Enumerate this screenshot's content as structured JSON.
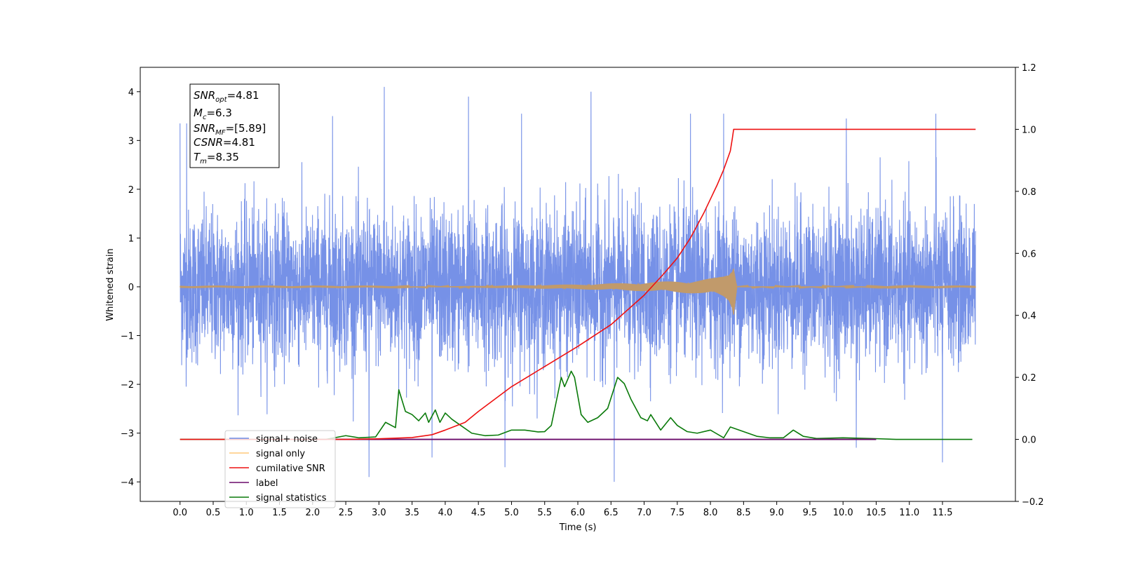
{
  "chart_data": {
    "type": "line",
    "xlabel": "Time (s)",
    "ylabel": "Whitened strain",
    "xlim": [
      -0.6,
      12.6
    ],
    "ylim_left": [
      -4.4,
      4.5
    ],
    "ylim_right": [
      -0.2,
      1.2
    ],
    "x_ticks": [
      0.0,
      0.5,
      1.0,
      1.5,
      2.0,
      2.5,
      3.0,
      3.5,
      4.0,
      4.5,
      5.0,
      5.5,
      6.0,
      6.5,
      7.0,
      7.5,
      8.0,
      8.5,
      9.0,
      9.5,
      10.0,
      10.5,
      11.0,
      11.5
    ],
    "x_tick_labels": [
      "0.0",
      "0.5",
      "1.0",
      "1.5",
      "2.0",
      "2.5",
      "3.0",
      "3.5",
      "4.0",
      "4.5",
      "5.0",
      "5.5",
      "6.0",
      "6.5",
      "7.0",
      "7.5",
      "8.0",
      "8.5",
      "9.0",
      "9.5",
      "10.0",
      "10.5",
      "11.0",
      "11.5"
    ],
    "y_ticks_left": [
      -4,
      -3,
      -2,
      -1,
      0,
      1,
      2,
      3,
      4
    ],
    "y_tick_labels_left": [
      "−4",
      "−3",
      "−2",
      "−1",
      "0",
      "1",
      "2",
      "3",
      "4"
    ],
    "y_ticks_right": [
      -0.2,
      0.0,
      0.2,
      0.4,
      0.6,
      0.8,
      1.0,
      1.2
    ],
    "y_tick_labels_right": [
      "−0.2",
      "0.0",
      "0.2",
      "0.4",
      "0.6",
      "0.8",
      "1.0",
      "1.2"
    ],
    "grid": false,
    "legend_placement": "lower-left",
    "legend": [
      {
        "label": "signal+ noise",
        "color": "#6f8be6"
      },
      {
        "label": "signal only",
        "color": "#ffc87a"
      },
      {
        "label": "cumilative SNR",
        "color": "#ee1111"
      },
      {
        "label": "label",
        "color": "#6a0a6a"
      },
      {
        "label": "signal statistics",
        "color": "#0a7a0a"
      }
    ],
    "annotation": [
      {
        "var": "SNR",
        "sub": "opt",
        "value": "=4.81"
      },
      {
        "var": "M",
        "sub": "c",
        "value": "=6.3"
      },
      {
        "var": "SNR",
        "sub": "MF",
        "value": "=[5.89]"
      },
      {
        "var": "CSNR",
        "sub": "",
        "value": "=4.81"
      },
      {
        "var": "T",
        "sub": "m",
        "value": "=8.35"
      }
    ],
    "series": [
      {
        "name": "signal+ noise",
        "axis": "left",
        "color": "#6f8be6",
        "description": "dense whitened noise, typical amplitude about ±2.3, spikes up to about 4.1 and down to about -4.0",
        "x_range": [
          0.0,
          12.0
        ],
        "spikes": [
          [
            0.0,
            3.35
          ],
          [
            0.1,
            3.35
          ],
          [
            3.08,
            4.1
          ],
          [
            4.35,
            3.9
          ],
          [
            6.2,
            4.0
          ],
          [
            2.85,
            -3.9
          ],
          [
            4.9,
            -3.7
          ],
          [
            6.55,
            -4.0
          ],
          [
            11.5,
            -3.6
          ],
          [
            10.2,
            -3.3
          ],
          [
            3.8,
            -3.5
          ],
          [
            11.4,
            3.55
          ],
          [
            8.2,
            3.55
          ],
          [
            7.7,
            3.55
          ],
          [
            5.15,
            3.55
          ],
          [
            2.3,
            3.5
          ],
          [
            10.05,
            3.45
          ]
        ]
      },
      {
        "name": "signal only",
        "axis": "left",
        "color": "#ffc87a",
        "x": [
          0.0,
          3.0,
          4.0,
          5.0,
          6.0,
          6.5,
          7.0,
          7.5,
          7.8,
          8.0,
          8.1,
          8.2,
          8.28,
          8.33,
          8.35,
          8.4,
          12.0
        ],
        "envelope": [
          0.005,
          0.005,
          0.01,
          0.03,
          0.05,
          0.07,
          0.09,
          0.12,
          0.14,
          0.17,
          0.19,
          0.23,
          0.3,
          0.45,
          0.6,
          0.01,
          0.005
        ]
      },
      {
        "name": "cumilative SNR",
        "axis": "right",
        "color": "#ee1111",
        "x": [
          0.0,
          2.5,
          3.0,
          3.5,
          3.8,
          4.0,
          4.3,
          4.5,
          5.0,
          5.5,
          6.0,
          6.5,
          7.0,
          7.3,
          7.5,
          7.7,
          7.9,
          8.1,
          8.2,
          8.3,
          8.33,
          8.35,
          12.0
        ],
        "y": [
          0.0,
          0.0,
          0.002,
          0.006,
          0.015,
          0.03,
          0.055,
          0.09,
          0.17,
          0.235,
          0.3,
          0.37,
          0.465,
          0.535,
          0.585,
          0.65,
          0.73,
          0.82,
          0.87,
          0.93,
          0.97,
          1.0,
          1.0
        ]
      },
      {
        "name": "label",
        "axis": "right",
        "color": "#6a0a6a",
        "x": [
          2.3,
          10.5
        ],
        "y": [
          0.0,
          0.0
        ]
      },
      {
        "name": "signal statistics",
        "axis": "right",
        "color": "#0a7a0a",
        "x": [
          0.0,
          2.2,
          2.5,
          2.7,
          2.95,
          3.1,
          3.25,
          3.3,
          3.4,
          3.5,
          3.6,
          3.7,
          3.75,
          3.85,
          3.92,
          4.0,
          4.1,
          4.2,
          4.4,
          4.6,
          4.8,
          5.0,
          5.2,
          5.4,
          5.5,
          5.6,
          5.75,
          5.8,
          5.9,
          5.95,
          6.05,
          6.15,
          6.3,
          6.45,
          6.6,
          6.7,
          6.8,
          6.95,
          7.05,
          7.1,
          7.25,
          7.4,
          7.5,
          7.65,
          7.8,
          8.0,
          8.2,
          8.3,
          8.5,
          8.7,
          8.9,
          9.1,
          9.25,
          9.4,
          9.6,
          10.0,
          10.4,
          10.8,
          11.2,
          11.95
        ],
        "y": [
          0.0,
          0.0,
          0.012,
          0.005,
          0.008,
          0.055,
          0.038,
          0.16,
          0.09,
          0.08,
          0.06,
          0.085,
          0.055,
          0.095,
          0.055,
          0.085,
          0.065,
          0.05,
          0.02,
          0.012,
          0.014,
          0.03,
          0.03,
          0.024,
          0.025,
          0.045,
          0.2,
          0.17,
          0.22,
          0.2,
          0.08,
          0.055,
          0.07,
          0.1,
          0.2,
          0.18,
          0.13,
          0.07,
          0.06,
          0.08,
          0.03,
          0.07,
          0.045,
          0.025,
          0.02,
          0.03,
          0.005,
          0.04,
          0.025,
          0.01,
          0.005,
          0.005,
          0.03,
          0.01,
          0.003,
          0.005,
          0.003,
          0.0,
          0.0,
          0.0
        ]
      }
    ]
  }
}
